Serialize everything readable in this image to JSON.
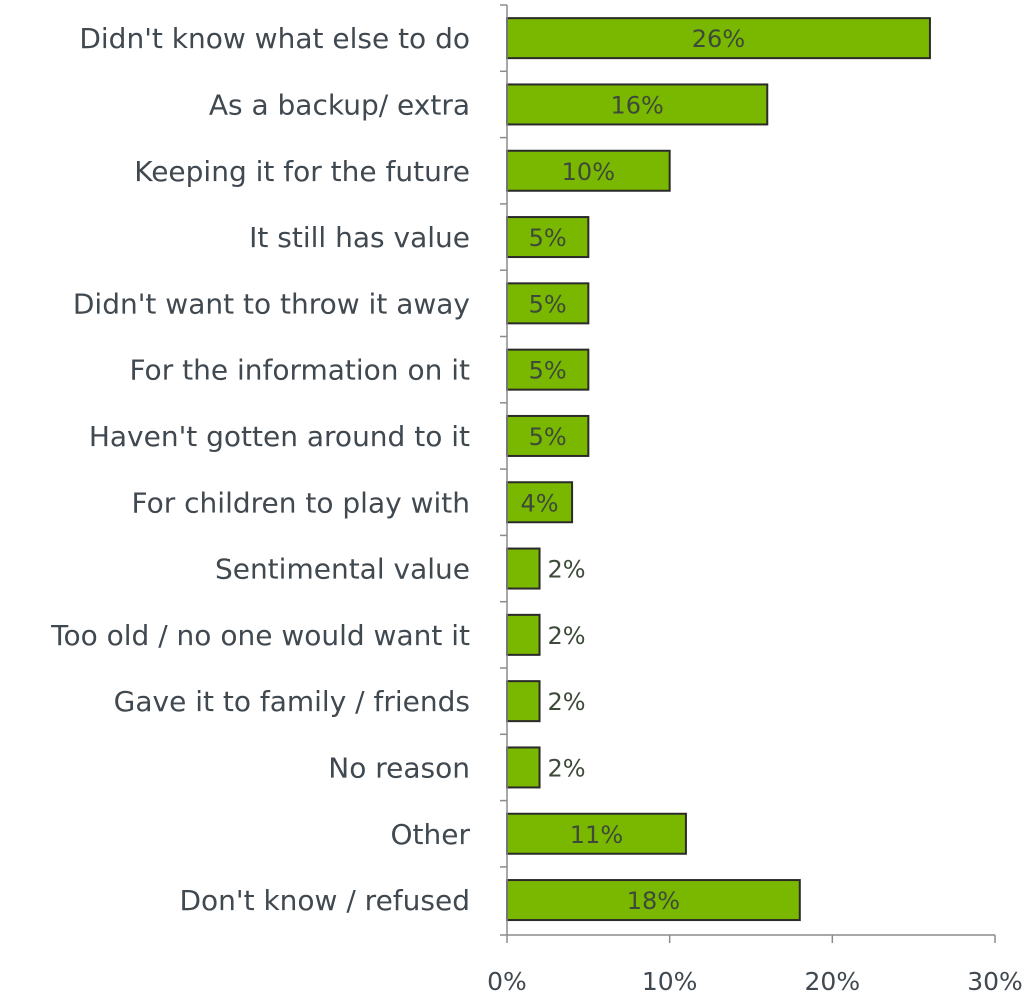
{
  "chart_data": {
    "type": "bar",
    "orientation": "horizontal",
    "categories": [
      "Didn't know what else to do",
      "As a backup/ extra",
      "Keeping it for the future",
      "It still has value",
      "Didn't want to throw it away",
      "For the information on it",
      "Haven't gotten around to it",
      "For children to play with",
      "Sentimental value",
      "Too old / no one would want it",
      "Gave it to family / friends",
      "No reason",
      "Other",
      "Don't know / refused"
    ],
    "values": [
      26,
      16,
      10,
      5,
      5,
      5,
      5,
      4,
      2,
      2,
      2,
      2,
      11,
      18
    ],
    "data_labels": [
      "26%",
      "16%",
      "10%",
      "5%",
      "5%",
      "5%",
      "5%",
      "4%",
      "2%",
      "2%",
      "2%",
      "2%",
      "11%",
      "18%"
    ],
    "xlim": [
      0,
      30
    ],
    "x_ticks": [
      0,
      10,
      20,
      30
    ],
    "x_tick_labels": [
      "0%",
      "10%",
      "20%",
      "30%"
    ],
    "title": "",
    "xlabel": "",
    "ylabel": "",
    "grid": false,
    "legend": "none",
    "colors": {
      "bar_fill": "#7ab800",
      "bar_stroke": "#2a2a2a",
      "axis": "#8c8c8c",
      "text": "#404850",
      "label_inside": "#3d4a3a"
    }
  }
}
